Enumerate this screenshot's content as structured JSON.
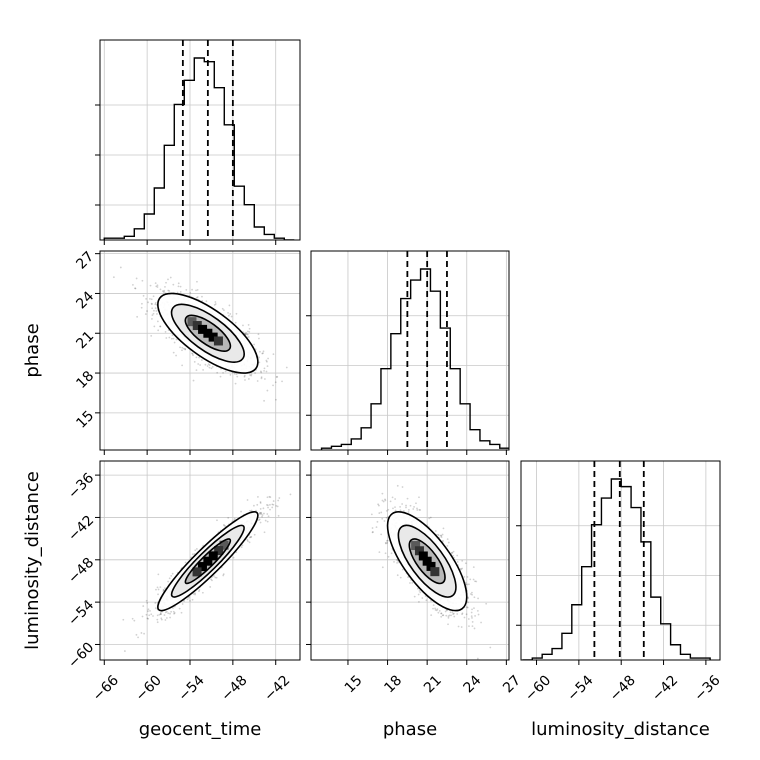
{
  "chart_data": {
    "type": "corner",
    "parameters": [
      "geocent_time",
      "phase",
      "luminosity_distance"
    ],
    "ranges": {
      "geocent_time": [
        -66.6,
        -38.6
      ],
      "phase": [
        12.2,
        27.2
      ],
      "luminosity_distance": [
        -62.2,
        -34.0
      ]
    },
    "ticks": {
      "geocent_time": [
        "−66",
        "−60",
        "−54",
        "−48",
        "−42"
      ],
      "geocent_time_values": [
        -66,
        -60,
        -54,
        -48,
        -42
      ],
      "phase": [
        "15",
        "18",
        "21",
        "24",
        "27"
      ],
      "phase_values": [
        15,
        18,
        21,
        24,
        27
      ],
      "luminosity_distance": [
        "−60",
        "−54",
        "−48",
        "−42",
        "−36"
      ],
      "luminosity_distance_values": [
        -60,
        -54,
        -48,
        -42,
        -36
      ]
    },
    "quantiles": {
      "geocent_time": [
        -55.0,
        -51.5,
        -48.0
      ],
      "phase": [
        19.5,
        21.0,
        22.5
      ],
      "luminosity_distance": [
        -51.8,
        -48.2,
        -44.8
      ]
    },
    "histograms": {
      "geocent_time": {
        "edges": [
          -66,
          -64.6,
          -63.2,
          -61.8,
          -60.4,
          -59,
          -57.6,
          -56.2,
          -54.8,
          -53.4,
          -52,
          -50.6,
          -49.2,
          -47.8,
          -46.4,
          -45,
          -43.6,
          -42.2,
          -40.8,
          -39.4
        ],
        "counts": [
          1,
          1,
          2,
          6,
          14,
          28,
          51,
          73,
          86,
          98,
          96,
          82,
          62,
          29,
          19,
          7,
          3,
          1,
          0
        ]
      },
      "phase": {
        "edges": [
          13,
          13.75,
          14.5,
          15.25,
          16,
          16.75,
          17.5,
          18.25,
          19,
          19.75,
          20.5,
          21.25,
          22,
          22.75,
          23.5,
          24.25,
          25,
          25.75,
          26.5,
          27.25
        ],
        "counts": [
          1,
          2,
          3,
          6,
          12,
          25,
          44,
          63,
          82,
          92,
          98,
          86,
          66,
          44,
          25,
          11,
          5,
          3,
          1
        ]
      },
      "luminosity_distance": {
        "edges": [
          -62,
          -60.6,
          -59.2,
          -57.8,
          -56.4,
          -55,
          -53.6,
          -52.2,
          -50.8,
          -49.4,
          -48,
          -46.6,
          -45.2,
          -43.8,
          -42.4,
          -41,
          -39.6,
          -38.2,
          -36.8,
          -35.4
        ],
        "counts": [
          0,
          1,
          3,
          6,
          14,
          29,
          49,
          71,
          85,
          95,
          91,
          80,
          62,
          33,
          19,
          8,
          3,
          1,
          1
        ]
      }
    },
    "correlations": {
      "phase_vs_geocent_time": -0.72,
      "luminosity_distance_vs_geocent_time": 0.93,
      "luminosity_distance_vs_phase": -0.72
    },
    "grid": true
  }
}
